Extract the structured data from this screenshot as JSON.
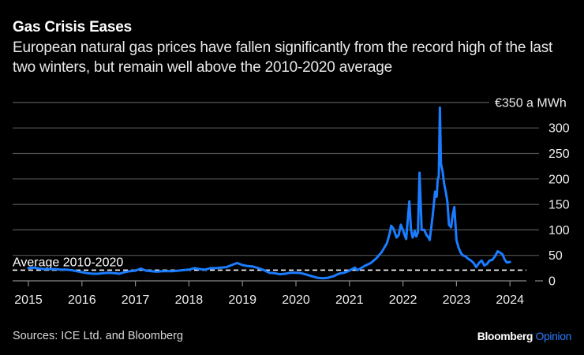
{
  "header": {
    "title": "Gas Crisis Eases",
    "subtitle": "European natural gas prices have fallen significantly from the record high of the last two winters, but remain well above the 2010-2020 average"
  },
  "footer": {
    "source": "Sources: ICE Ltd. and Bloomberg",
    "brand_main": "Bloomberg",
    "brand_accent": "Opinion"
  },
  "colors": {
    "background": "#000000",
    "line": "#1a7cff",
    "grid": "#555555",
    "average": "#ffffff"
  },
  "chart_data": {
    "type": "line",
    "title": "Gas Crisis Eases",
    "xlabel": "",
    "ylabel": "€ a MWh",
    "unit_label": "€350 a MWh",
    "ylim": [
      0,
      350
    ],
    "xlim": [
      2015,
      2024.3
    ],
    "y_ticks": [
      0,
      50,
      100,
      150,
      200,
      250,
      300,
      350
    ],
    "y_tick_labels": [
      "0",
      "50",
      "100",
      "150",
      "200",
      "250",
      "300",
      "€350 a MWh"
    ],
    "x_ticks": [
      2015,
      2016,
      2017,
      2018,
      2019,
      2020,
      2021,
      2022,
      2023,
      2024
    ],
    "x_tick_labels": [
      "2015",
      "2016",
      "2017",
      "2018",
      "2019",
      "2020",
      "2021",
      "2022",
      "2023",
      "2024"
    ],
    "grid": true,
    "reference_line": {
      "label": "Average 2010-2020",
      "value": 21
    },
    "series": [
      {
        "name": "European natural gas price",
        "x": [
          2015.0,
          2015.1,
          2015.2,
          2015.3,
          2015.4,
          2015.5,
          2015.6,
          2015.7,
          2015.8,
          2015.9,
          2016.0,
          2016.1,
          2016.2,
          2016.3,
          2016.4,
          2016.5,
          2016.6,
          2016.7,
          2016.8,
          2016.9,
          2017.0,
          2017.1,
          2017.2,
          2017.3,
          2017.4,
          2017.5,
          2017.6,
          2017.7,
          2017.8,
          2017.9,
          2018.0,
          2018.1,
          2018.2,
          2018.3,
          2018.4,
          2018.5,
          2018.6,
          2018.7,
          2018.8,
          2018.9,
          2019.0,
          2019.1,
          2019.2,
          2019.3,
          2019.4,
          2019.5,
          2019.6,
          2019.7,
          2019.8,
          2019.9,
          2020.0,
          2020.1,
          2020.2,
          2020.3,
          2020.4,
          2020.5,
          2020.6,
          2020.7,
          2020.8,
          2020.9,
          2021.0,
          2021.1,
          2021.15,
          2021.2,
          2021.3,
          2021.4,
          2021.5,
          2021.55,
          2021.6,
          2021.65,
          2021.7,
          2021.75,
          2021.78,
          2021.82,
          2021.85,
          2021.88,
          2021.92,
          2021.96,
          2022.0,
          2022.03,
          2022.06,
          2022.09,
          2022.12,
          2022.15,
          2022.18,
          2022.2,
          2022.22,
          2022.25,
          2022.28,
          2022.31,
          2022.35,
          2022.4,
          2022.44,
          2022.48,
          2022.5,
          2022.53,
          2022.56,
          2022.6,
          2022.63,
          2022.65,
          2022.67,
          2022.69,
          2022.71,
          2022.74,
          2022.77,
          2022.8,
          2022.83,
          2022.86,
          2022.9,
          2022.93,
          2022.96,
          2023.0,
          2023.04,
          2023.08,
          2023.12,
          2023.17,
          2023.22,
          2023.27,
          2023.32,
          2023.37,
          2023.42,
          2023.47,
          2023.52,
          2023.57,
          2023.62,
          2023.67,
          2023.72,
          2023.77,
          2023.82,
          2023.86,
          2023.9,
          2023.94,
          2024.0
        ],
        "values": [
          25,
          26,
          24,
          23,
          23,
          23,
          22,
          22,
          21,
          19,
          17,
          15,
          14,
          14,
          15,
          16,
          15,
          14,
          17,
          19,
          20,
          24,
          20,
          19,
          18,
          19,
          19,
          19,
          20,
          21,
          22,
          25,
          23,
          22,
          25,
          25,
          26,
          27,
          31,
          35,
          31,
          29,
          28,
          25,
          21,
          16,
          15,
          13,
          14,
          16,
          16,
          15,
          12,
          9,
          6,
          5,
          6,
          9,
          14,
          16,
          20,
          26,
          21,
          24,
          30,
          35,
          44,
          50,
          56,
          65,
          74,
          92,
          108,
          103,
          94,
          85,
          90,
          110,
          100,
          90,
          82,
          120,
          156,
          100,
          85,
          90,
          98,
          87,
          95,
          212,
          100,
          100,
          90,
          85,
          80,
          105,
          133,
          175,
          165,
          200,
          205,
          340,
          230,
          215,
          190,
          175,
          155,
          110,
          105,
          130,
          145,
          80,
          65,
          55,
          50,
          48,
          43,
          40,
          35,
          27,
          35,
          40,
          30,
          33,
          40,
          41,
          48,
          58,
          55,
          52,
          42,
          36,
          37
        ]
      }
    ]
  }
}
